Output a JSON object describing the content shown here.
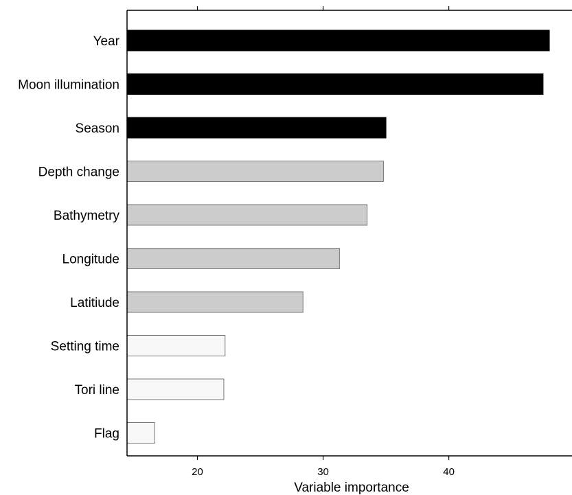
{
  "chart_data": {
    "type": "bar",
    "orientation": "horizontal",
    "xlabel": "Variable importance",
    "ylabel": "",
    "xlim": [
      14.4,
      49.8
    ],
    "xticks": [
      20,
      30,
      40
    ],
    "grid": false,
    "categories": [
      "Year",
      "Moon illumination",
      "Season",
      "Depth change",
      "Bathymetry",
      "Longitude",
      "Latitiude",
      "Setting time",
      "Tori line",
      "Flag"
    ],
    "values": [
      48.0,
      47.5,
      35.0,
      34.8,
      33.5,
      31.3,
      28.4,
      22.2,
      22.1,
      16.6
    ],
    "bar_colors": [
      "#000000",
      "#000000",
      "#000000",
      "#cccccc",
      "#cccccc",
      "#cccccc",
      "#cccccc",
      "#f8f8f8",
      "#f8f8f8",
      "#f8f8f8"
    ]
  }
}
